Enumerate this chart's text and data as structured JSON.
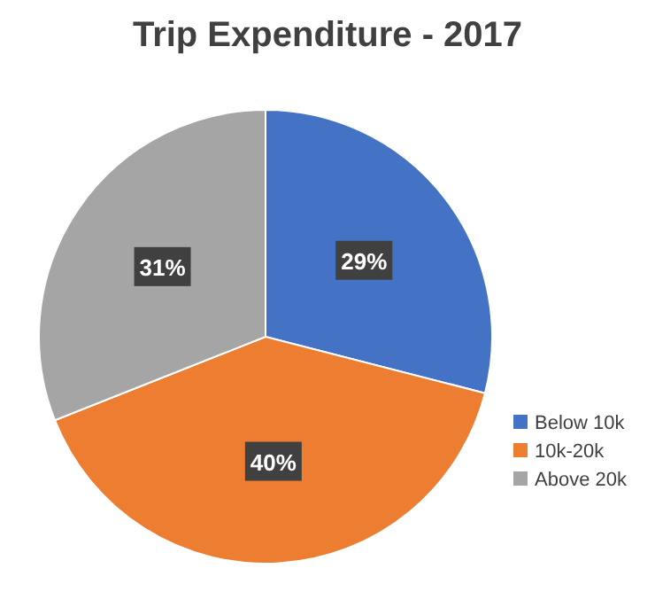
{
  "chart_data": {
    "type": "pie",
    "title": "Trip Expenditure - 2017",
    "categories": [
      "Below 10k",
      "10k-20k",
      "Above 20k"
    ],
    "values": [
      29,
      40,
      31
    ],
    "colors": [
      "#4472c4",
      "#ed7d31",
      "#a5a5a5"
    ],
    "value_labels": [
      "29%",
      "40%",
      "31%"
    ],
    "legend": "right"
  }
}
